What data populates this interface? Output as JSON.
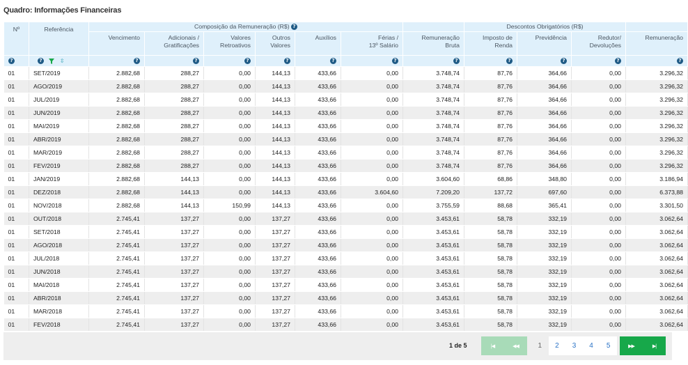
{
  "panel": {
    "title": "Quadro: Informações Financeiras"
  },
  "colors": {
    "header_bg": "#dff0fb",
    "help_icon": "#1f5b86",
    "filter_icon": "#17a84a",
    "nav_active": "#17a84a",
    "nav_disabled": "#a8dbb8",
    "row_alt": "#eeeeee"
  },
  "table": {
    "groups": {
      "composicao": "Composição da Remuneração (R$)",
      "descontos": "Descontos Obrigatórios (R$)"
    },
    "headers": {
      "n": "Nº",
      "referencia": "Referência",
      "vencimento": "Vencimento",
      "adicionais": [
        "Adicionais /",
        "Gratificações"
      ],
      "valores_retroativos": [
        "Valores",
        "Retroativos"
      ],
      "outros_valores": [
        "Outros",
        "Valores"
      ],
      "auxilios": "Auxílios",
      "ferias": [
        "Férias /",
        "13º Salário"
      ],
      "remuneracao_bruta": [
        "Remuneração",
        "Bruta"
      ],
      "imposto_renda": [
        "Imposto de",
        "Renda"
      ],
      "previdencia": "Previdência",
      "redutor": [
        "Redutor/",
        "Devoluções"
      ],
      "remuneracao": "Remuneração"
    },
    "rows": [
      [
        "01",
        "SET/2019",
        "2.882,68",
        "288,27",
        "0,00",
        "144,13",
        "433,66",
        "0,00",
        "3.748,74",
        "87,76",
        "364,66",
        "0,00",
        "3.296,32"
      ],
      [
        "01",
        "AGO/2019",
        "2.882,68",
        "288,27",
        "0,00",
        "144,13",
        "433,66",
        "0,00",
        "3.748,74",
        "87,76",
        "364,66",
        "0,00",
        "3.296,32"
      ],
      [
        "01",
        "JUL/2019",
        "2.882,68",
        "288,27",
        "0,00",
        "144,13",
        "433,66",
        "0,00",
        "3.748,74",
        "87,76",
        "364,66",
        "0,00",
        "3.296,32"
      ],
      [
        "01",
        "JUN/2019",
        "2.882,68",
        "288,27",
        "0,00",
        "144,13",
        "433,66",
        "0,00",
        "3.748,74",
        "87,76",
        "364,66",
        "0,00",
        "3.296,32"
      ],
      [
        "01",
        "MAI/2019",
        "2.882,68",
        "288,27",
        "0,00",
        "144,13",
        "433,66",
        "0,00",
        "3.748,74",
        "87,76",
        "364,66",
        "0,00",
        "3.296,32"
      ],
      [
        "01",
        "ABR/2019",
        "2.882,68",
        "288,27",
        "0,00",
        "144,13",
        "433,66",
        "0,00",
        "3.748,74",
        "87,76",
        "364,66",
        "0,00",
        "3.296,32"
      ],
      [
        "01",
        "MAR/2019",
        "2.882,68",
        "288,27",
        "0,00",
        "144,13",
        "433,66",
        "0,00",
        "3.748,74",
        "87,76",
        "364,66",
        "0,00",
        "3.296,32"
      ],
      [
        "01",
        "FEV/2019",
        "2.882,68",
        "288,27",
        "0,00",
        "144,13",
        "433,66",
        "0,00",
        "3.748,74",
        "87,76",
        "364,66",
        "0,00",
        "3.296,32"
      ],
      [
        "01",
        "JAN/2019",
        "2.882,68",
        "144,13",
        "0,00",
        "144,13",
        "433,66",
        "0,00",
        "3.604,60",
        "68,86",
        "348,80",
        "0,00",
        "3.186,94"
      ],
      [
        "01",
        "DEZ/2018",
        "2.882,68",
        "144,13",
        "0,00",
        "144,13",
        "433,66",
        "3.604,60",
        "7.209,20",
        "137,72",
        "697,60",
        "0,00",
        "6.373,88"
      ],
      [
        "01",
        "NOV/2018",
        "2.882,68",
        "144,13",
        "150,99",
        "144,13",
        "433,66",
        "0,00",
        "3.755,59",
        "88,68",
        "365,41",
        "0,00",
        "3.301,50"
      ],
      [
        "01",
        "OUT/2018",
        "2.745,41",
        "137,27",
        "0,00",
        "137,27",
        "433,66",
        "0,00",
        "3.453,61",
        "58,78",
        "332,19",
        "0,00",
        "3.062,64"
      ],
      [
        "01",
        "SET/2018",
        "2.745,41",
        "137,27",
        "0,00",
        "137,27",
        "433,66",
        "0,00",
        "3.453,61",
        "58,78",
        "332,19",
        "0,00",
        "3.062,64"
      ],
      [
        "01",
        "AGO/2018",
        "2.745,41",
        "137,27",
        "0,00",
        "137,27",
        "433,66",
        "0,00",
        "3.453,61",
        "58,78",
        "332,19",
        "0,00",
        "3.062,64"
      ],
      [
        "01",
        "JUL/2018",
        "2.745,41",
        "137,27",
        "0,00",
        "137,27",
        "433,66",
        "0,00",
        "3.453,61",
        "58,78",
        "332,19",
        "0,00",
        "3.062,64"
      ],
      [
        "01",
        "JUN/2018",
        "2.745,41",
        "137,27",
        "0,00",
        "137,27",
        "433,66",
        "0,00",
        "3.453,61",
        "58,78",
        "332,19",
        "0,00",
        "3.062,64"
      ],
      [
        "01",
        "MAI/2018",
        "2.745,41",
        "137,27",
        "0,00",
        "137,27",
        "433,66",
        "0,00",
        "3.453,61",
        "58,78",
        "332,19",
        "0,00",
        "3.062,64"
      ],
      [
        "01",
        "ABR/2018",
        "2.745,41",
        "137,27",
        "0,00",
        "137,27",
        "433,66",
        "0,00",
        "3.453,61",
        "58,78",
        "332,19",
        "0,00",
        "3.062,64"
      ],
      [
        "01",
        "MAR/2018",
        "2.745,41",
        "137,27",
        "0,00",
        "137,27",
        "433,66",
        "0,00",
        "3.453,61",
        "58,78",
        "332,19",
        "0,00",
        "3.062,64"
      ],
      [
        "01",
        "FEV/2018",
        "2.745,41",
        "137,27",
        "0,00",
        "137,27",
        "433,66",
        "0,00",
        "3.453,61",
        "58,78",
        "332,19",
        "0,00",
        "3.062,64"
      ]
    ]
  },
  "pagination": {
    "info": "1 de 5",
    "pages": [
      "1",
      "2",
      "3",
      "4",
      "5"
    ],
    "current_page": 1,
    "first_icon": "first-page-icon",
    "prev_icon": "previous-page-icon",
    "next_icon": "next-page-icon",
    "last_icon": "last-page-icon"
  }
}
